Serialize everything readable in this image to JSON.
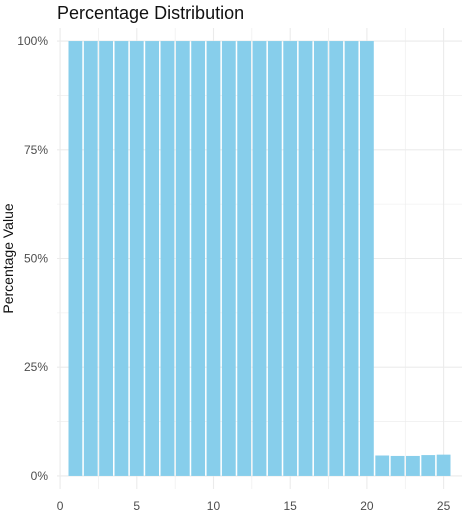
{
  "chart_data": {
    "type": "bar",
    "title": "Percentage Distribution",
    "xlabel": "",
    "ylabel": "Percentage Value",
    "x": [
      1,
      2,
      3,
      4,
      5,
      6,
      7,
      8,
      9,
      10,
      11,
      12,
      13,
      14,
      15,
      16,
      17,
      18,
      19,
      20,
      21,
      22,
      23,
      24,
      25
    ],
    "values": [
      100,
      100,
      100,
      100,
      100,
      100,
      100,
      100,
      100,
      100,
      100,
      100,
      100,
      100,
      100,
      100,
      100,
      100,
      100,
      100,
      4.7,
      4.6,
      4.6,
      4.8,
      4.9
    ],
    "xlim": [
      -0.2,
      26.2
    ],
    "ylim": [
      -3,
      103
    ],
    "x_ticks": [
      0,
      5,
      10,
      15,
      20,
      25
    ],
    "x_tick_labels": [
      "0",
      "5",
      "10",
      "15",
      "20",
      "25"
    ],
    "y_ticks": [
      0,
      25,
      50,
      75,
      100
    ],
    "y_tick_labels": [
      "0%",
      "25%",
      "50%",
      "75%",
      "100%"
    ],
    "bar_color": "#87CEEB",
    "grid": true,
    "grid_color": "#ebebeb",
    "legend": "none"
  }
}
